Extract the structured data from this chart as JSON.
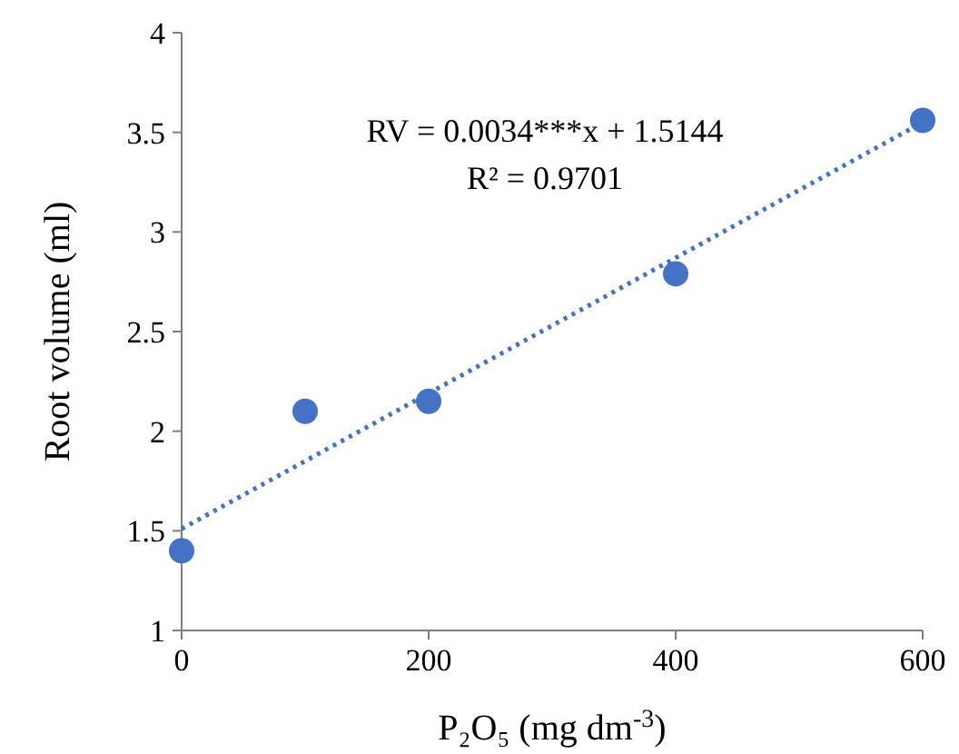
{
  "chart_data": {
    "type": "scatter",
    "xlabel": "P₂O₅ (mg dm$^{-3}$)",
    "ylabel": "Root volume (ml)",
    "x": [
      0,
      100,
      200,
      400,
      600
    ],
    "series": [
      {
        "color": "#4472c4",
        "values": [
          1.4,
          2.1,
          2.15,
          2.79,
          3.56
        ],
        "marker": "circle"
      },
      {
        "type": "line",
        "color": "#4472c4",
        "x": [
          0,
          600
        ],
        "values": [
          1.51,
          3.55
        ],
        "line_style": "dotted",
        "marker": "none"
      }
    ],
    "xlim": [
      0,
      600
    ],
    "xticks": [
      0,
      200,
      400,
      600
    ],
    "ylim": [
      1,
      4
    ],
    "yticks": [
      1,
      1.5,
      2,
      2.5,
      3,
      3.5,
      4
    ],
    "annotations": [
      "RV = 0.0034***x + 1.5144",
      "R² = 0.9701"
    ],
    "grid": false
  }
}
